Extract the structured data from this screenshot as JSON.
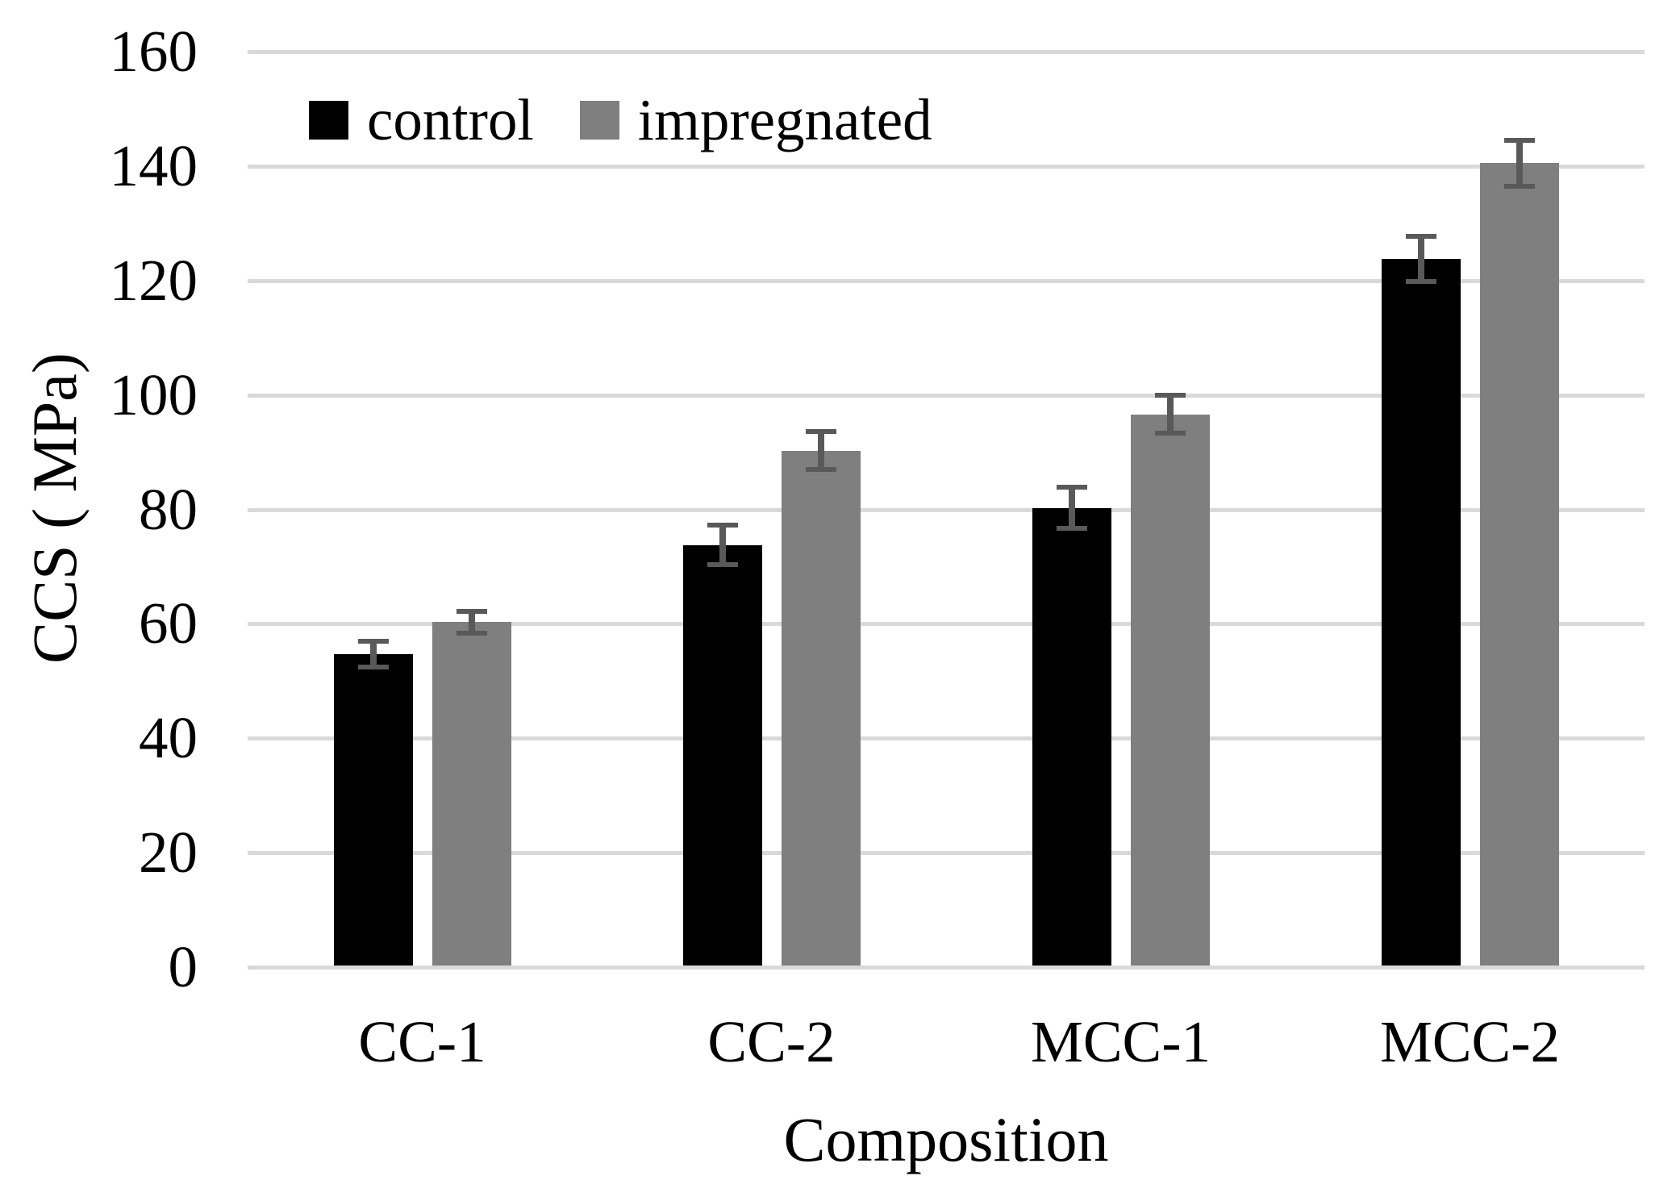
{
  "chart_data": {
    "type": "bar",
    "title": "",
    "xlabel": "Composition",
    "ylabel": "CCS ( MPa)",
    "categories": [
      "CC-1",
      "CC-2",
      "MCC-1",
      "MCC-2"
    ],
    "series": [
      {
        "name": "control",
        "color": "#000000",
        "values": [
          54.4,
          73.5,
          80.0,
          123.5
        ],
        "errors": [
          2.3,
          3.5,
          3.6,
          4.0
        ]
      },
      {
        "name": "impregnated",
        "color": "#7f7f7f",
        "values": [
          60.0,
          90.0,
          96.3,
          140.2
        ],
        "errors": [
          1.9,
          3.3,
          3.3,
          4.0
        ]
      }
    ],
    "ylim": [
      0,
      160
    ],
    "yticks": [
      0,
      20,
      40,
      60,
      80,
      100,
      120,
      140,
      160
    ],
    "grid": true,
    "legend_position": "top-left",
    "gridline_color": "#d9d9d9",
    "error_bar_color": "#595959"
  }
}
